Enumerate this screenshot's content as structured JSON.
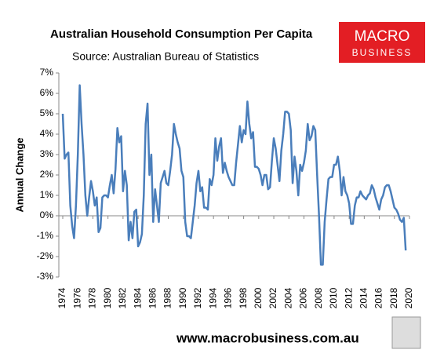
{
  "chart_data": {
    "type": "line",
    "title": "Australian Household Consumption Per Capita",
    "subtitle": "Source: Australian Bureau of Statistics",
    "y_label": "Annual Change",
    "logo": [
      "MACRO",
      "BUSINESS"
    ],
    "footer": "www.macrobusiness.com.au",
    "color": "#4a7ebb",
    "x": [
      1974,
      1974.25,
      1974.5,
      1974.75,
      1975,
      1975.25,
      1975.5,
      1975.75,
      1976,
      1976.25,
      1976.5,
      1976.75,
      1977,
      1977.25,
      1977.5,
      1977.75,
      1978,
      1978.25,
      1978.5,
      1978.75,
      1979,
      1979.25,
      1979.5,
      1979.75,
      1980,
      1980.25,
      1980.5,
      1980.75,
      1981,
      1981.25,
      1981.5,
      1981.75,
      1982,
      1982.25,
      1982.5,
      1982.75,
      1983,
      1983.25,
      1983.5,
      1983.75,
      1984,
      1984.25,
      1984.5,
      1984.75,
      1985,
      1985.25,
      1985.5,
      1985.75,
      1986,
      1986.25,
      1986.5,
      1986.75,
      1987,
      1987.25,
      1987.5,
      1987.75,
      1988,
      1988.25,
      1988.5,
      1988.75,
      1989,
      1989.25,
      1989.5,
      1989.75,
      1990,
      1990.25,
      1990.5,
      1990.75,
      1991,
      1991.25,
      1991.5,
      1991.75,
      1992,
      1992.25,
      1992.5,
      1992.75,
      1993,
      1993.25,
      1993.5,
      1993.75,
      1994,
      1994.25,
      1994.5,
      1994.75,
      1995,
      1995.25,
      1995.5,
      1995.75,
      1996,
      1996.25,
      1996.5,
      1996.75,
      1997,
      1997.25,
      1997.5,
      1997.75,
      1998,
      1998.25,
      1998.5,
      1998.75,
      1999,
      1999.25,
      1999.5,
      1999.75,
      2000,
      2000.25,
      2000.5,
      2000.75,
      2001,
      2001.25,
      2001.5,
      2001.75,
      2002,
      2002.25,
      2002.5,
      2002.75,
      2003,
      2003.25,
      2003.5,
      2003.75,
      2004,
      2004.25,
      2004.5,
      2004.75,
      2005,
      2005.25,
      2005.5,
      2005.75,
      2006,
      2006.25,
      2006.5,
      2006.75,
      2007,
      2007.25,
      2007.5,
      2007.75,
      2008,
      2008.25,
      2008.5,
      2008.75,
      2009,
      2009.25,
      2009.5,
      2009.75,
      2010,
      2010.25,
      2010.5,
      2010.75,
      2011,
      2011.25,
      2011.5,
      2011.75,
      2012,
      2012.25,
      2012.5,
      2012.75,
      2013,
      2013.25,
      2013.5,
      2013.75,
      2014,
      2014.25,
      2014.5,
      2014.75,
      2015,
      2015.25,
      2015.5,
      2015.75,
      2016,
      2016.25,
      2016.5,
      2016.75,
      2017,
      2017.25,
      2017.5,
      2017.75,
      2018,
      2018.25,
      2018.5,
      2018.75,
      2019,
      2019.25,
      2019.5
    ],
    "values": [
      5.0,
      2.8,
      3.0,
      3.1,
      0.5,
      -0.5,
      -1.1,
      0.5,
      3.0,
      6.4,
      4.5,
      3.0,
      1.0,
      0.0,
      0.9,
      1.7,
      1.2,
      0.5,
      0.9,
      -0.8,
      -0.6,
      0.9,
      1.0,
      1.0,
      0.9,
      1.5,
      2.0,
      1.1,
      2.3,
      4.3,
      3.6,
      3.9,
      1.2,
      2.2,
      1.5,
      -1.2,
      -0.3,
      -1.1,
      0.2,
      0.3,
      -1.5,
      -1.3,
      -0.9,
      1.0,
      4.5,
      5.5,
      2.0,
      3.0,
      -0.3,
      1.3,
      0.5,
      -0.3,
      1.6,
      1.9,
      2.2,
      1.6,
      1.5,
      2.2,
      3.0,
      4.5,
      4.0,
      3.6,
      3.3,
      2.2,
      1.9,
      -0.3,
      -1.0,
      -1.0,
      -1.1,
      -0.3,
      0.5,
      1.6,
      2.2,
      1.2,
      1.4,
      0.4,
      0.4,
      0.3,
      1.8,
      1.5,
      2.0,
      3.8,
      2.7,
      3.4,
      3.8,
      2.1,
      2.6,
      2.2,
      1.9,
      1.7,
      1.5,
      1.5,
      2.6,
      3.5,
      4.4,
      3.6,
      4.2,
      4.0,
      5.6,
      4.5,
      3.8,
      4.1,
      2.4,
      2.4,
      2.3,
      2.0,
      1.5,
      2.0,
      2.0,
      1.3,
      1.4,
      2.7,
      3.8,
      3.3,
      2.5,
      1.7,
      3.2,
      4.0,
      5.1,
      5.1,
      5.0,
      4.2,
      1.6,
      2.9,
      2.2,
      1.0,
      2.5,
      2.2,
      2.6,
      3.2,
      4.5,
      3.7,
      3.9,
      4.4,
      4.2,
      2.0,
      0.0,
      -2.4,
      -2.4,
      -0.3,
      0.8,
      1.8,
      1.9,
      1.9,
      2.5,
      2.5,
      2.9,
      2.2,
      1.0,
      1.9,
      1.2,
      1.0,
      0.6,
      -0.4,
      -0.4,
      0.5,
      0.9,
      0.9,
      1.2,
      1.0,
      0.9,
      0.8,
      1.0,
      1.1,
      1.5,
      1.3,
      0.9,
      0.6,
      0.3,
      0.8,
      1.0,
      1.4,
      1.5,
      1.5,
      1.2,
      0.8,
      0.4,
      0.3,
      0.1,
      -0.2,
      -0.3,
      -0.1,
      -1.7
    ],
    "xlim": [
      1974,
      2020
    ],
    "xticks": [
      1974,
      1976,
      1978,
      1980,
      1982,
      1984,
      1986,
      1988,
      1990,
      1992,
      1994,
      1996,
      1998,
      2000,
      2002,
      2004,
      2006,
      2008,
      2010,
      2012,
      2014,
      2016,
      2018,
      2020
    ],
    "ylim": [
      -3,
      7
    ],
    "yticks": [
      {
        "value": -3,
        "label": "-3%"
      },
      {
        "value": -2,
        "label": "-2%"
      },
      {
        "value": -1,
        "label": "-1%"
      },
      {
        "value": 0,
        "label": "0%"
      },
      {
        "value": 1,
        "label": "1%"
      },
      {
        "value": 2,
        "label": "2%"
      },
      {
        "value": 3,
        "label": "3%"
      },
      {
        "value": 4,
        "label": "4%"
      },
      {
        "value": 5,
        "label": "5%"
      },
      {
        "value": 6,
        "label": "6%"
      },
      {
        "value": 7,
        "label": "7%"
      }
    ],
    "grid": false
  }
}
